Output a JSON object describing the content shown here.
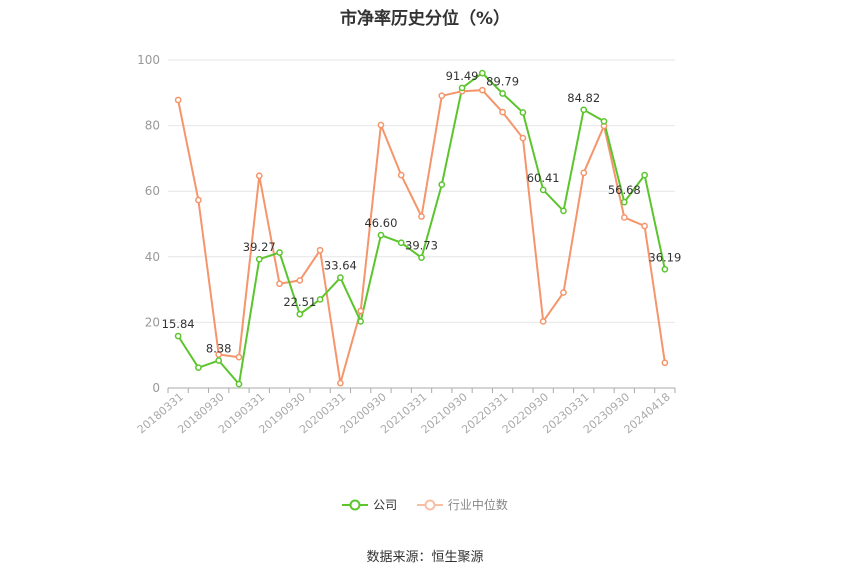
{
  "chart_data": {
    "type": "line",
    "title": "市净率历史分位（%）",
    "ylim": [
      0,
      100
    ],
    "yticks": [
      0,
      20,
      40,
      60,
      80,
      100
    ],
    "x_tick_labels": [
      "20180331",
      "20180930",
      "20190331",
      "20190930",
      "20200331",
      "20200930",
      "20210331",
      "20210930",
      "20220331",
      "20220930",
      "20230331",
      "20230930",
      "20240418"
    ],
    "series": [
      {
        "name": "公司",
        "color": "#5cc52e",
        "values": [
          15.84,
          6.2,
          8.38,
          1.2,
          39.27,
          41.3,
          22.51,
          27.0,
          33.64,
          20.3,
          46.6,
          44.3,
          39.73,
          62.0,
          91.49,
          96.0,
          89.79,
          84.0,
          60.41,
          54.0,
          84.82,
          81.3,
          56.68,
          64.9,
          36.19
        ]
      },
      {
        "name": "行业中位数",
        "color": "#f5956b",
        "values": [
          87.8,
          57.3,
          10.2,
          9.4,
          64.7,
          31.8,
          32.8,
          42.0,
          1.5,
          23.5,
          80.2,
          64.9,
          52.3,
          89.1,
          90.5,
          90.8,
          84.1,
          76.2,
          20.3,
          29.1,
          65.6,
          79.9,
          52.0,
          49.4,
          7.7
        ]
      }
    ],
    "data_labels": [
      {
        "index": 0,
        "text": "15.84"
      },
      {
        "index": 2,
        "text": "8.38"
      },
      {
        "index": 4,
        "text": "39.27"
      },
      {
        "index": 6,
        "text": "22.51"
      },
      {
        "index": 8,
        "text": "33.64"
      },
      {
        "index": 10,
        "text": "46.60"
      },
      {
        "index": 12,
        "text": "39.73"
      },
      {
        "index": 14,
        "text": "91.49"
      },
      {
        "index": 16,
        "text": "89.79"
      },
      {
        "index": 18,
        "text": "60.41"
      },
      {
        "index": 20,
        "text": "84.82"
      },
      {
        "index": 22,
        "text": "56.68"
      },
      {
        "index": 24,
        "text": "36.19"
      }
    ],
    "legend": {
      "position": "bottom"
    },
    "grid": true
  },
  "legend_labels": [
    "公司",
    "行业中位数"
  ],
  "source": "数据来源：恒生聚源"
}
